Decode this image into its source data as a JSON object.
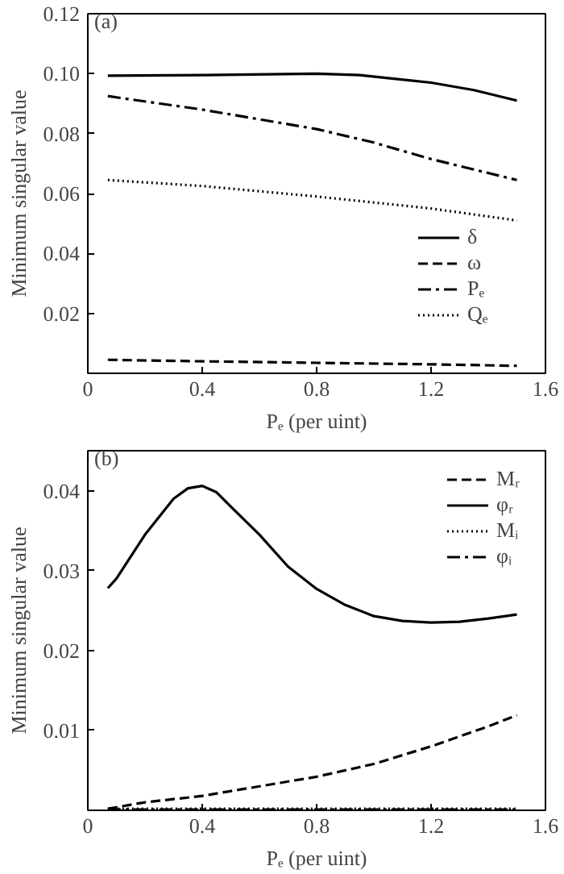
{
  "chart_data": [
    {
      "type": "line",
      "xlabel": "Pₑ (per uint)",
      "ylabel": "Minimum singular value",
      "annotations": [
        "(a)"
      ],
      "xlim": [
        0,
        1.6
      ],
      "xticks": [
        0,
        0.4,
        0.8,
        1.2,
        1.6
      ],
      "ylim": [
        0,
        0.12
      ],
      "yticks": [
        {
          "value": 0.02,
          "label": "0.02"
        },
        {
          "value": 0.04,
          "label": "0.04"
        },
        {
          "value": 0.06,
          "label": "0.06"
        },
        {
          "value": 0.08,
          "label": "0.08"
        },
        {
          "value": 0.1,
          "label": "0.10"
        },
        {
          "value": 0.12,
          "label": "0.12"
        }
      ],
      "grid": false,
      "legend": "bottom right",
      "series": [
        {
          "name": "δ",
          "color": "#000000",
          "line_style": "solid",
          "x": [
            0.07,
            0.4,
            0.8,
            0.95,
            1.2,
            1.35,
            1.5
          ],
          "values": [
            0.0993,
            0.0995,
            0.1,
            0.0995,
            0.097,
            0.0945,
            0.091
          ]
        },
        {
          "name": "ω",
          "color": "#000000",
          "line_style": "dashed",
          "x": [
            0.07,
            0.4,
            0.8,
            1.2,
            1.5
          ],
          "values": [
            0.0045,
            0.004,
            0.0035,
            0.003,
            0.0025
          ]
        },
        {
          "name": "Pₑ",
          "color": "#000000",
          "line_style": "dashdot",
          "x": [
            0.07,
            0.4,
            0.8,
            1.0,
            1.2,
            1.5
          ],
          "values": [
            0.0925,
            0.088,
            0.0815,
            0.077,
            0.0715,
            0.0645
          ]
        },
        {
          "name": "Qₑ",
          "color": "#000000",
          "line_style": "dotted",
          "x": [
            0.07,
            0.4,
            0.8,
            1.2,
            1.5
          ],
          "values": [
            0.0645,
            0.0625,
            0.059,
            0.055,
            0.051
          ]
        }
      ]
    },
    {
      "type": "line",
      "xlabel": "Pₑ (per uint)",
      "ylabel": "Minimum singular value",
      "annotations": [
        "(b)"
      ],
      "xlim": [
        0,
        1.6
      ],
      "xticks": [
        0,
        0.4,
        0.8,
        1.2,
        1.6
      ],
      "ylim": [
        0,
        0.045
      ],
      "yticks": [
        0.01,
        0.02,
        0.03,
        0.04
      ],
      "grid": false,
      "legend": "top right",
      "series": [
        {
          "name": "Mᵣ",
          "color": "#000000",
          "line_style": "dashed",
          "x": [
            0.07,
            0.2,
            0.4,
            0.6,
            0.8,
            1.0,
            1.2,
            1.4,
            1.5
          ],
          "values": [
            0.0002,
            0.001,
            0.0018,
            0.003,
            0.0042,
            0.0058,
            0.008,
            0.0105,
            0.0119
          ]
        },
        {
          "name": "φᵣ",
          "color": "#000000",
          "line_style": "solid",
          "x": [
            0.07,
            0.1,
            0.2,
            0.3,
            0.35,
            0.4,
            0.45,
            0.5,
            0.6,
            0.7,
            0.8,
            0.9,
            1.0,
            1.1,
            1.2,
            1.3,
            1.4,
            1.5
          ],
          "values": [
            0.0278,
            0.029,
            0.0345,
            0.039,
            0.0403,
            0.0406,
            0.0398,
            0.038,
            0.0345,
            0.0305,
            0.0277,
            0.0257,
            0.0243,
            0.0237,
            0.0235,
            0.0236,
            0.024,
            0.0245
          ]
        },
        {
          "name": "Mᵢ",
          "color": "#000000",
          "line_style": "dotted",
          "x": [
            0.07,
            1.5
          ],
          "values": [
            0.0002,
            0.0002
          ]
        },
        {
          "name": "φᵢ",
          "color": "#000000",
          "line_style": "dashdot",
          "x": [
            0.07,
            1.5
          ],
          "values": [
            0.0001,
            0.0001
          ]
        }
      ]
    }
  ]
}
